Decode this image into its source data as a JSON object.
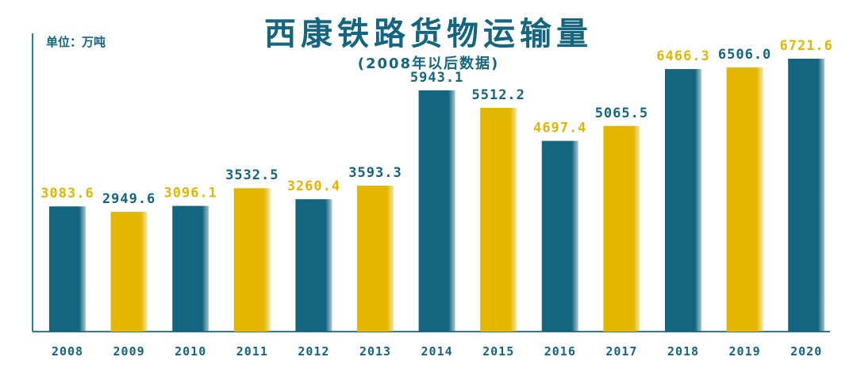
{
  "chart_data": {
    "type": "bar",
    "title": "西康铁路货物运输量",
    "subtitle": "(2008年以后数据)",
    "unit_label": "单位：万吨",
    "categories": [
      "2008",
      "2009",
      "2010",
      "2011",
      "2012",
      "2013",
      "2014",
      "2015",
      "2016",
      "2017",
      "2018",
      "2019",
      "2020"
    ],
    "values": [
      3083.6,
      2949.6,
      3096.1,
      3532.5,
      3260.4,
      3593.3,
      5943.1,
      5512.2,
      4697.4,
      5065.5,
      6466.3,
      6506.0,
      6721.6
    ],
    "value_labels": [
      "3083.6",
      "2949.6",
      "3096.1",
      "3532.5",
      "3260.4",
      "3593.3",
      "5943.1",
      "5512.2",
      "4697.4",
      "5065.5",
      "6466.3",
      "6506.0",
      "6721.6"
    ],
    "ylim": [
      0,
      7000
    ],
    "grid": false,
    "legend": "none",
    "colors": {
      "teal": "#14657f",
      "gold": "#e3b600",
      "axis": "#2e7aa0"
    },
    "bar_colors": [
      "teal",
      "gold",
      "teal",
      "gold",
      "teal",
      "gold",
      "teal",
      "gold",
      "teal",
      "gold",
      "teal",
      "gold",
      "teal"
    ],
    "label_colors": [
      "gold",
      "teal",
      "gold",
      "teal",
      "gold",
      "teal",
      "teal",
      "teal",
      "gold",
      "teal",
      "gold",
      "teal",
      "gold"
    ]
  }
}
